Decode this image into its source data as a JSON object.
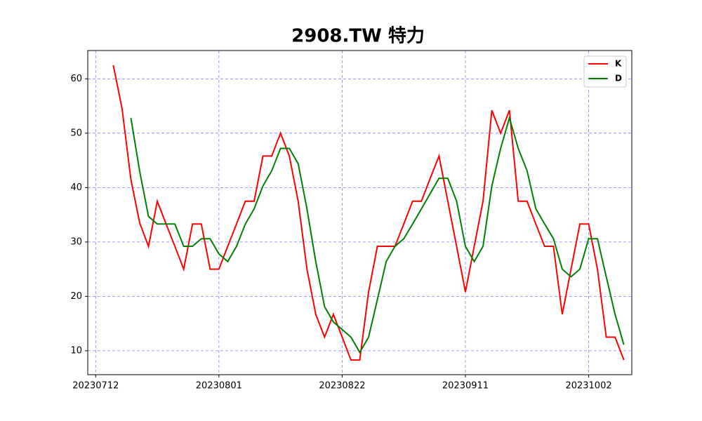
{
  "chart_data": {
    "type": "line",
    "title": "2908.TW 特力",
    "categories": [
      "20230712",
      null,
      null,
      null,
      null,
      null,
      null,
      null,
      null,
      null,
      null,
      null,
      null,
      null,
      "20230801",
      null,
      null,
      null,
      null,
      null,
      null,
      null,
      null,
      null,
      null,
      null,
      null,
      null,
      "20230822",
      null,
      null,
      null,
      null,
      null,
      null,
      null,
      null,
      null,
      null,
      null,
      null,
      null,
      "20230911",
      null,
      null,
      null,
      null,
      null,
      null,
      null,
      null,
      null,
      null,
      null,
      null,
      null,
      "20231002",
      null,
      null,
      null,
      null
    ],
    "series": [
      {
        "name": "K",
        "color": "#ff0000",
        "values": [
          null,
          null,
          62.5,
          54.5,
          41.5,
          33.5,
          29.2,
          37.5,
          33.3,
          29.2,
          25.0,
          33.3,
          33.3,
          25.0,
          25.0,
          29.2,
          33.3,
          37.5,
          37.5,
          45.8,
          45.8,
          50.0,
          45.8,
          37.5,
          25.0,
          16.7,
          12.5,
          16.7,
          12.5,
          8.3,
          8.3,
          20.8,
          29.2,
          29.2,
          29.2,
          33.3,
          37.5,
          37.5,
          41.7,
          45.8,
          37.5,
          29.2,
          20.8,
          29.2,
          37.5,
          54.2,
          50.0,
          54.2,
          37.5,
          37.5,
          33.3,
          29.2,
          29.2,
          16.7,
          25.0,
          33.3,
          33.3,
          25.0,
          12.5,
          12.5,
          8.3
        ]
      },
      {
        "name": "D",
        "color": "#008000",
        "values": [
          null,
          null,
          null,
          null,
          52.8,
          43.0,
          34.7,
          33.3,
          33.3,
          33.3,
          29.2,
          29.2,
          30.6,
          30.6,
          27.8,
          26.4,
          29.2,
          33.3,
          36.1,
          40.3,
          43.1,
          47.2,
          47.2,
          44.4,
          36.1,
          26.4,
          18.1,
          15.3,
          13.9,
          12.5,
          9.7,
          12.5,
          19.4,
          26.4,
          29.2,
          30.6,
          33.3,
          36.1,
          38.9,
          41.7,
          41.7,
          37.5,
          29.2,
          26.4,
          29.2,
          40.3,
          47.2,
          52.8,
          47.2,
          43.1,
          36.1,
          33.3,
          30.6,
          25.0,
          23.6,
          25.0,
          30.6,
          30.6,
          23.6,
          16.7,
          11.1
        ]
      }
    ],
    "ylim": [
      5.6,
      65.2
    ],
    "yticks": [
      10,
      20,
      30,
      40,
      50,
      60
    ],
    "grid": true,
    "legend": "upper right"
  }
}
